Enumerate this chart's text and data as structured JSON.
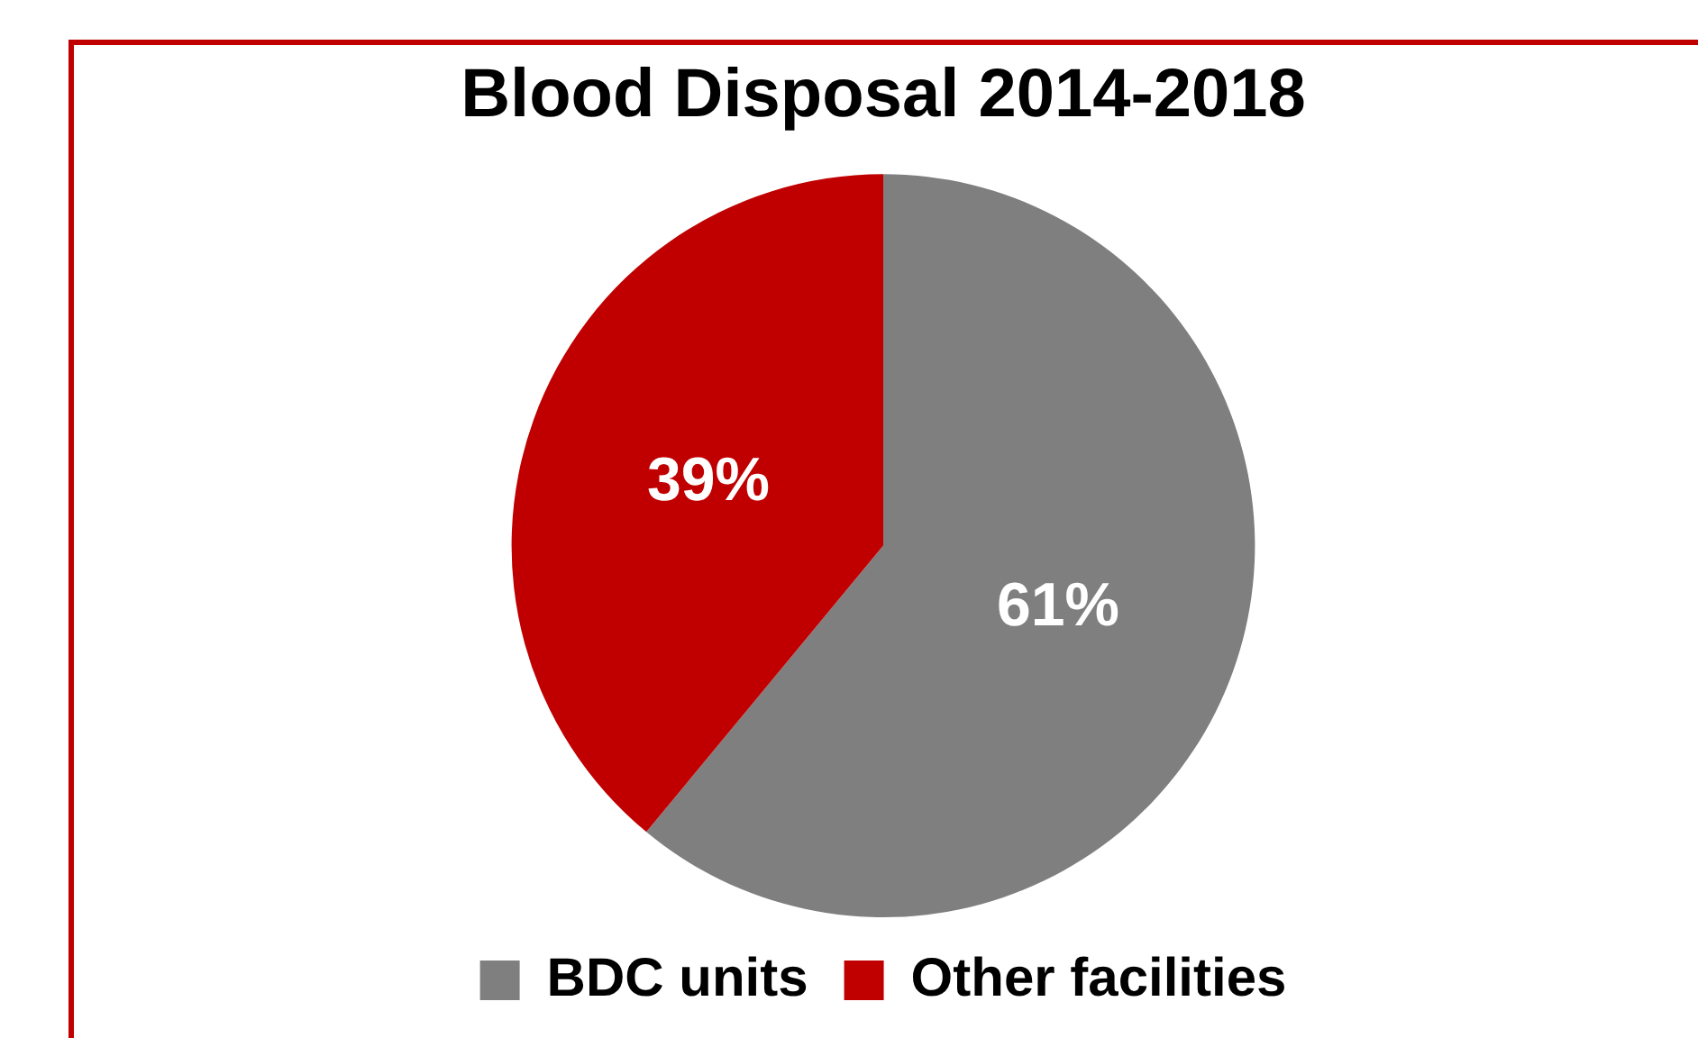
{
  "chart_data": {
    "type": "pie",
    "title": "Blood Disposal 2014-2018",
    "categories": [
      "BDC units",
      "Other facilities"
    ],
    "values": [
      61,
      39
    ],
    "colors": [
      "#7f7f7f",
      "#c00000"
    ],
    "value_labels": [
      "61%",
      "39%"
    ],
    "legend": "bottom"
  }
}
